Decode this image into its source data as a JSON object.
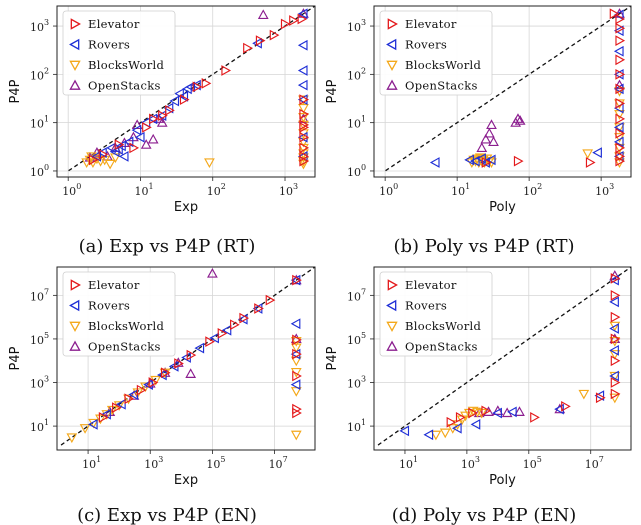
{
  "figure": {
    "colors": {
      "Elevator": "#e41a1c",
      "Rovers": "#1f2fd6",
      "BlocksWorld": "#f4a81a",
      "OpenStacks": "#8b1e8f"
    }
  },
  "chart_data": [
    {
      "type": "scatter",
      "caption": "(a) Exp vs P4P (RT)",
      "xlabel": "Exp",
      "ylabel": "P4P",
      "log_x": true,
      "log_y": true,
      "xlim": [
        0.7,
        2600
      ],
      "ylim": [
        0.75,
        2600
      ],
      "xticks": [
        {
          "v": 1,
          "exp": "0"
        },
        {
          "v": 10,
          "exp": "1"
        },
        {
          "v": 100,
          "exp": "2"
        },
        {
          "v": 1000,
          "exp": "3"
        }
      ],
      "yticks": [
        {
          "v": 1,
          "exp": "0"
        },
        {
          "v": 10,
          "exp": "1"
        },
        {
          "v": 100,
          "exp": "2"
        },
        {
          "v": 1000,
          "exp": "3"
        }
      ],
      "diagonal": true,
      "legend_position": "top-left",
      "grid": true,
      "series": [
        {
          "name": "Elevator",
          "marker": "right",
          "x": [
            2.2,
            3,
            5,
            8,
            12,
            15,
            20,
            25,
            40,
            60,
            80,
            150,
            300,
            450,
            700,
            1000,
            1300,
            1700,
            1800,
            1800,
            1800,
            1800,
            1800,
            1800,
            1800,
            1800
          ],
          "y": [
            1.7,
            2.2,
            3.5,
            3.0,
            8,
            12,
            14,
            18,
            30,
            55,
            65,
            120,
            350,
            500,
            650,
            1100,
            1300,
            1400,
            30,
            15,
            8,
            5,
            3,
            2,
            1.6,
            9
          ]
        },
        {
          "name": "Rovers",
          "marker": "left",
          "x": [
            2.5,
            3,
            4,
            4.5,
            5,
            5.5,
            6,
            7,
            9,
            10,
            12,
            15,
            20,
            25,
            30,
            35,
            40,
            45,
            50,
            60,
            420,
            1800,
            1800,
            1800,
            1800,
            1800,
            1800,
            1800
          ],
          "y": [
            2.0,
            2.4,
            3.0,
            2.5,
            2.8,
            3.3,
            2.0,
            4.0,
            7,
            5,
            10,
            12,
            14,
            20,
            28,
            40,
            35,
            50,
            55,
            60,
            440,
            1800,
            400,
            120,
            60,
            30,
            5,
            2
          ]
        },
        {
          "name": "BlocksWorld",
          "marker": "down",
          "x": [
            1.8,
            2.0,
            2.1,
            2.2,
            2.5,
            2.8,
            3.2,
            3.8,
            4.5,
            90,
            1800,
            1800,
            1800,
            1800,
            1800,
            1800,
            1800,
            1800,
            1800,
            1800,
            1800
          ],
          "y": [
            1.5,
            1.7,
            2.0,
            1.5,
            1.8,
            1.6,
            1.7,
            1.4,
            1.9,
            1.5,
            1.4,
            1.6,
            1.9,
            2.3,
            3,
            4,
            6,
            9,
            13,
            20,
            30
          ]
        },
        {
          "name": "OpenStacks",
          "marker": "up",
          "x": [
            2.0,
            2.5,
            3.5,
            4.5,
            6,
            8,
            9,
            12,
            15,
            18,
            20,
            500,
            1800,
            1800
          ],
          "y": [
            1.9,
            2.4,
            2.0,
            3.0,
            3.8,
            5.0,
            9.0,
            3.5,
            4.5,
            12,
            10,
            1700,
            1800,
            12
          ]
        }
      ]
    },
    {
      "type": "scatter",
      "caption": "(b) Poly vs P4P (RT)",
      "xlabel": "Poly",
      "ylabel": "P4P",
      "log_x": true,
      "log_y": true,
      "xlim": [
        0.7,
        2600
      ],
      "ylim": [
        0.75,
        2600
      ],
      "xticks": [
        {
          "v": 1,
          "exp": "0"
        },
        {
          "v": 10,
          "exp": "1"
        },
        {
          "v": 100,
          "exp": "2"
        },
        {
          "v": 1000,
          "exp": "3"
        }
      ],
      "yticks": [
        {
          "v": 1,
          "exp": "0"
        },
        {
          "v": 10,
          "exp": "1"
        },
        {
          "v": 100,
          "exp": "2"
        },
        {
          "v": 1000,
          "exp": "3"
        }
      ],
      "diagonal": true,
      "legend_position": "top-left",
      "grid": true,
      "series": [
        {
          "name": "Elevator",
          "marker": "right",
          "x": [
            25,
            70,
            700,
            1500,
            1800,
            1800,
            1800,
            1800,
            1800,
            1800,
            1800,
            1800,
            1800,
            1800,
            1800,
            1800
          ],
          "y": [
            1.5,
            1.6,
            1.5,
            1800,
            1400,
            900,
            500,
            200,
            100,
            50,
            25,
            12,
            6,
            3,
            2,
            1.6
          ]
        },
        {
          "name": "Rovers",
          "marker": "left",
          "x": [
            5,
            15,
            18,
            22,
            25,
            30,
            900,
            1800,
            1800,
            1800,
            1800,
            1800,
            1800,
            1800,
            1800,
            1800
          ],
          "y": [
            1.5,
            1.7,
            1.6,
            1.8,
            1.5,
            1.7,
            2.4,
            1700,
            800,
            300,
            100,
            50,
            20,
            8,
            4,
            2
          ]
        },
        {
          "name": "BlocksWorld",
          "marker": "down",
          "x": [
            16,
            17,
            18,
            19,
            20,
            21,
            22,
            23,
            24,
            26,
            28,
            30,
            650,
            1800,
            1800,
            1800,
            1800,
            1800,
            1800,
            1800,
            1800
          ],
          "y": [
            1.5,
            1.7,
            1.6,
            1.8,
            1.5,
            1.9,
            1.6,
            1.7,
            1.5,
            1.8,
            1.6,
            1.5,
            2.3,
            1.5,
            2,
            3,
            5,
            8,
            15,
            25,
            45
          ]
        },
        {
          "name": "OpenStacks",
          "marker": "up",
          "x": [
            22,
            25,
            28,
            30,
            32,
            65,
            70,
            75,
            1800,
            1800
          ],
          "y": [
            3.0,
            4.5,
            6.0,
            9.0,
            4.0,
            10,
            12,
            11,
            1800,
            60
          ]
        }
      ]
    },
    {
      "type": "scatter",
      "caption": "(c) Exp vs P4P (EN)",
      "xlabel": "Exp",
      "ylabel": "P4P",
      "log_x": true,
      "log_y": true,
      "xlim": [
        1,
        200000000
      ],
      "ylim": [
        0.8,
        200000000
      ],
      "xticks": [
        {
          "v": 10,
          "exp": "1"
        },
        {
          "v": 1000,
          "exp": "3"
        },
        {
          "v": 100000,
          "exp": "5"
        },
        {
          "v": 10000000,
          "exp": "7"
        }
      ],
      "yticks": [
        {
          "v": 10,
          "exp": "1"
        },
        {
          "v": 1000,
          "exp": "3"
        },
        {
          "v": 100000,
          "exp": "5"
        },
        {
          "v": 10000000,
          "exp": "7"
        }
      ],
      "diagonal": true,
      "legend_position": "top-left",
      "grid": true,
      "series": [
        {
          "name": "Elevator",
          "marker": "right",
          "x": [
            30,
            80,
            200,
            500,
            1200,
            3000,
            8000,
            20000,
            80000,
            200000,
            500000,
            1000000,
            3000000,
            7000000,
            50000000,
            50000000,
            50000000,
            50000000,
            50000000,
            50000000
          ],
          "y": [
            25,
            70,
            180,
            450,
            1000,
            2800,
            7500,
            18000,
            75000,
            180000,
            450000,
            900000,
            2500000,
            6000000,
            40,
            60,
            2000,
            20000,
            90000,
            50000000
          ]
        },
        {
          "name": "Rovers",
          "marker": "left",
          "x": [
            15,
            40,
            120,
            300,
            900,
            2500,
            6000,
            15000,
            40000,
            120000,
            300000,
            1000000,
            3000000,
            50000000,
            50000000,
            50000000,
            50000000
          ],
          "y": [
            12,
            35,
            100,
            280,
            800,
            2200,
            5500,
            14000,
            38000,
            110000,
            250000,
            800000,
            2500000,
            50000000,
            500000,
            20000,
            800
          ]
        },
        {
          "name": "BlocksWorld",
          "marker": "down",
          "x": [
            3,
            8,
            15,
            25,
            40,
            60,
            100,
            200,
            400,
            700,
            1500,
            3000,
            50000000,
            50000000,
            50000000,
            50000000,
            50000000,
            50000000
          ],
          "y": [
            3,
            8,
            14,
            22,
            35,
            55,
            90,
            180,
            350,
            650,
            1300,
            2800,
            4,
            400,
            3000,
            10000,
            40000,
            80000
          ]
        },
        {
          "name": "OpenStacks",
          "marker": "up",
          "x": [
            50,
            300,
            1000,
            3000,
            8000,
            20000,
            100000,
            50000000,
            50000000
          ],
          "y": [
            45,
            250,
            900,
            2800,
            8000,
            2500,
            100000000,
            50000000,
            100000
          ]
        }
      ]
    },
    {
      "type": "scatter",
      "caption": "(d) Poly vs P4P (EN)",
      "xlabel": "Poly",
      "ylabel": "P4P",
      "log_x": true,
      "log_y": true,
      "xlim": [
        1,
        200000000
      ],
      "ylim": [
        0.8,
        200000000
      ],
      "xticks": [
        {
          "v": 10,
          "exp": "1"
        },
        {
          "v": 1000,
          "exp": "3"
        },
        {
          "v": 100000,
          "exp": "5"
        },
        {
          "v": 10000000,
          "exp": "7"
        }
      ],
      "yticks": [
        {
          "v": 10,
          "exp": "1"
        },
        {
          "v": 1000,
          "exp": "3"
        },
        {
          "v": 100000,
          "exp": "5"
        },
        {
          "v": 10000000,
          "exp": "7"
        }
      ],
      "diagonal": true,
      "legend_position": "top-left",
      "grid": true,
      "series": [
        {
          "name": "Elevator",
          "marker": "right",
          "x": [
            300,
            600,
            1500,
            4000,
            150000,
            1500000,
            20000000,
            60000000,
            60000000,
            60000000,
            60000000,
            60000000,
            60000000,
            60000000
          ],
          "y": [
            15,
            25,
            40,
            50,
            25,
            80,
            200,
            60000000,
            10000000,
            1000000,
            100000,
            10000,
            1000,
            300
          ]
        },
        {
          "name": "Rovers",
          "marker": "left",
          "x": [
            10,
            60,
            500,
            2000,
            10000,
            30000,
            1000000,
            20000000,
            60000000,
            60000000,
            60000000,
            60000000,
            60000000
          ],
          "y": [
            6,
            4,
            8,
            12,
            40,
            45,
            60,
            250,
            50000000,
            5000000,
            300000,
            30000,
            2000
          ]
        },
        {
          "name": "BlocksWorld",
          "marker": "down",
          "x": [
            100,
            200,
            350,
            500,
            700,
            900,
            1200,
            1600,
            2200,
            3000,
            6000000,
            60000000,
            60000000,
            60000000,
            60000000,
            60000000
          ],
          "y": [
            4,
            5,
            8,
            12,
            20,
            30,
            40,
            50,
            45,
            40,
            300,
            200,
            2000,
            20000,
            80000,
            400000
          ]
        },
        {
          "name": "OpenStacks",
          "marker": "up",
          "x": [
            2500,
            5000,
            10000,
            20000,
            50000,
            1000000,
            60000000,
            60000000
          ],
          "y": [
            40,
            45,
            50,
            40,
            45,
            60,
            80000000,
            100000
          ]
        }
      ]
    }
  ]
}
